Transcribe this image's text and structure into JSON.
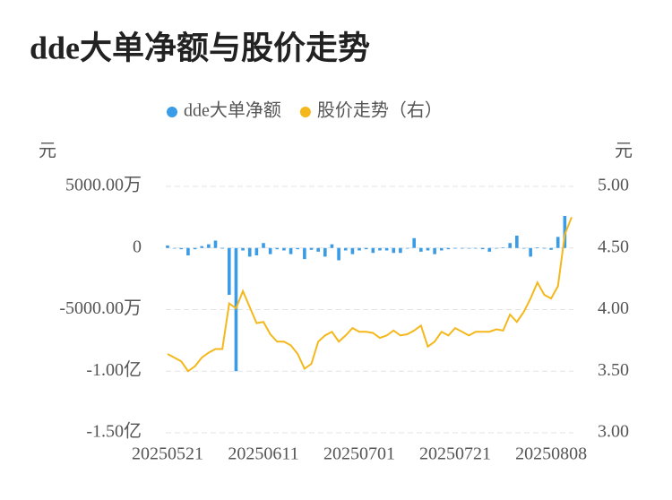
{
  "chart_data": {
    "type": "combo",
    "title": "dde大单净额与股价走势",
    "ylabel": "元",
    "y2label": "元",
    "legend": "top",
    "grid": true,
    "categories": [
      "20250521",
      null,
      null,
      null,
      null,
      null,
      null,
      null,
      null,
      null,
      null,
      null,
      null,
      null,
      "20250611",
      null,
      null,
      null,
      null,
      null,
      null,
      null,
      null,
      null,
      null,
      null,
      null,
      null,
      "20250701",
      null,
      null,
      null,
      null,
      null,
      null,
      null,
      null,
      null,
      null,
      null,
      null,
      null,
      "20250721",
      null,
      null,
      null,
      null,
      null,
      null,
      null,
      null,
      null,
      null,
      null,
      null,
      null,
      "20250808",
      null,
      null,
      null
    ],
    "ylim": [
      -150000000,
      50000000
    ],
    "yticks": [
      {
        "value": 50000000,
        "label": "5000.00万"
      },
      0,
      {
        "value": -50000000,
        "label": "-5000.00万"
      },
      {
        "value": -100000000,
        "label": "-1.00亿"
      },
      {
        "value": -150000000,
        "label": "-1.50亿"
      }
    ],
    "y2lim": [
      3,
      5
    ],
    "y2ticks": [
      {
        "value": 5,
        "label": "5.00"
      },
      {
        "value": 4.5,
        "label": "4.50"
      },
      {
        "value": 4,
        "label": "4.00"
      },
      {
        "value": 3.5,
        "label": "3.50"
      },
      {
        "value": 3,
        "label": "3.00"
      }
    ],
    "series": [
      {
        "name": "dde大单净额",
        "type": "bar",
        "color": "#3a9be6",
        "values": [
          2000000,
          -500000,
          -1000000,
          -6000000,
          -1000000,
          1500000,
          3000000,
          6000000,
          -500000,
          -38000000,
          -100000000,
          -2000000,
          -7000000,
          -6000000,
          4000000,
          -5000000,
          -1000000,
          -2000000,
          -5000000,
          -1000000,
          -9000000,
          -1500000,
          -3000000,
          -7000000,
          3000000,
          -10000000,
          -2000000,
          -5000000,
          -2000000,
          -1000000,
          -4000000,
          -2000000,
          -2000000,
          -4000000,
          -4000000,
          -500000,
          8000000,
          -3000000,
          -2000000,
          -5000000,
          -2000000,
          -1000000,
          -500000,
          -500000,
          -500000,
          -500000,
          -1000000,
          -3000000,
          -500000,
          500000,
          4000000,
          10000000,
          -500000,
          -7000000,
          500000,
          -500000,
          -1500000,
          9000000,
          26000000,
          0
        ]
      },
      {
        "name": "股价走势（右）",
        "type": "line",
        "axis": "y2",
        "color": "#f4b81c",
        "values": [
          3.64,
          3.61,
          3.58,
          3.5,
          3.54,
          3.61,
          3.65,
          3.68,
          3.68,
          4.05,
          4.01,
          4.15,
          4.02,
          3.89,
          3.9,
          3.8,
          3.74,
          3.74,
          3.71,
          3.64,
          3.52,
          3.56,
          3.74,
          3.79,
          3.82,
          3.74,
          3.79,
          3.85,
          3.82,
          3.82,
          3.81,
          3.77,
          3.79,
          3.83,
          3.79,
          3.8,
          3.83,
          3.87,
          3.7,
          3.74,
          3.82,
          3.79,
          3.85,
          3.82,
          3.79,
          3.82,
          3.82,
          3.82,
          3.84,
          3.83,
          3.96,
          3.9,
          3.98,
          4.09,
          4.22,
          4.12,
          4.09,
          4.19,
          4.61,
          4.75
        ]
      }
    ]
  }
}
